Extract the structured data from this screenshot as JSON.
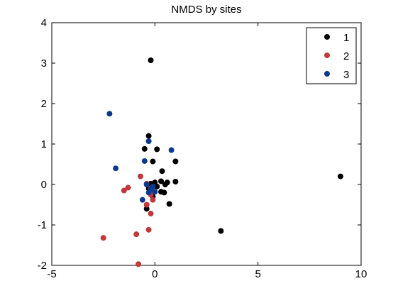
{
  "chart_data": {
    "type": "scatter",
    "title": "NMDS by sites",
    "xlabel": "",
    "ylabel": "",
    "xlim": [
      -5,
      10
    ],
    "ylim": [
      -2,
      4
    ],
    "xticks": [
      -5,
      0,
      5,
      10
    ],
    "yticks": [
      -2,
      -1,
      0,
      1,
      2,
      3,
      4
    ],
    "grid": false,
    "legend_position": "top-right",
    "series": [
      {
        "name": "1",
        "color": "#000000",
        "points": [
          [
            -0.2,
            3.07
          ],
          [
            -0.3,
            1.2
          ],
          [
            -0.5,
            0.88
          ],
          [
            0.1,
            0.87
          ],
          [
            -0.1,
            0.57
          ],
          [
            0.35,
            0.33
          ],
          [
            1.0,
            0.57
          ],
          [
            -0.2,
            0.02
          ],
          [
            0.0,
            0.05
          ],
          [
            0.3,
            0.08
          ],
          [
            0.5,
            0.0
          ],
          [
            0.1,
            -0.05
          ],
          [
            -0.3,
            -0.1
          ],
          [
            0.3,
            -0.18
          ],
          [
            0.45,
            -0.2
          ],
          [
            -0.1,
            -0.3
          ],
          [
            0.7,
            -0.48
          ],
          [
            -0.4,
            -0.6
          ],
          [
            1.0,
            0.07
          ],
          [
            0.6,
            0.05
          ],
          [
            3.2,
            -1.15
          ],
          [
            9.0,
            0.2
          ]
        ]
      },
      {
        "name": "2",
        "color": "#c0393b",
        "points": [
          [
            -0.7,
            0.2
          ],
          [
            -0.4,
            0.02
          ],
          [
            -0.2,
            -0.1
          ],
          [
            -1.3,
            -0.08
          ],
          [
            -1.5,
            -0.15
          ],
          [
            -0.2,
            -0.25
          ],
          [
            -0.1,
            -0.38
          ],
          [
            -0.4,
            -0.5
          ],
          [
            -0.2,
            -0.72
          ],
          [
            -0.9,
            -1.23
          ],
          [
            -0.3,
            -1.12
          ],
          [
            -2.5,
            -1.32
          ],
          [
            -0.8,
            -1.97
          ]
        ]
      },
      {
        "name": "3",
        "color": "#0b3a8c",
        "points": [
          [
            -2.2,
            1.75
          ],
          [
            -0.3,
            1.07
          ],
          [
            0.8,
            0.85
          ],
          [
            -0.5,
            0.58
          ],
          [
            -1.9,
            0.4
          ],
          [
            -0.4,
            0.0
          ],
          [
            -0.1,
            -0.05
          ],
          [
            -0.2,
            -0.12
          ],
          [
            0.0,
            -0.18
          ],
          [
            -0.3,
            -0.2
          ],
          [
            -0.6,
            -0.38
          ]
        ]
      }
    ]
  }
}
